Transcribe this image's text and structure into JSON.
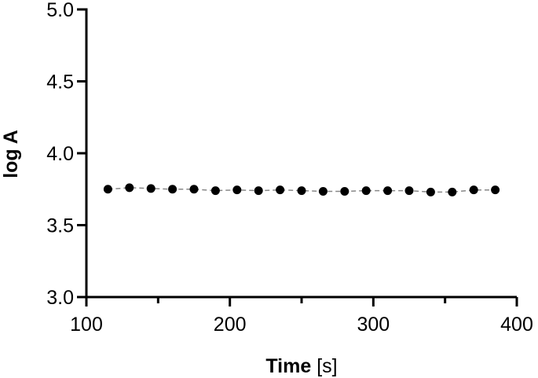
{
  "chart_data": {
    "type": "scatter",
    "xlabel": {
      "main": "Time",
      "unit": "[s]"
    },
    "ylabel": "log A",
    "xlim": [
      100,
      400
    ],
    "ylim": [
      3.0,
      5.0
    ],
    "xticks": [
      100,
      150,
      200,
      250,
      300,
      350,
      400
    ],
    "xtick_labels": [
      "100",
      "",
      "200",
      "",
      "300",
      "",
      "400"
    ],
    "yticks": [
      3.0,
      3.5,
      4.0,
      4.5,
      5.0
    ],
    "ytick_labels": [
      "3.0",
      "3.5",
      "4.0",
      "4.5",
      "5.0"
    ],
    "grid": false,
    "series": [
      {
        "point_color": "#000000",
        "line_color": "#888888",
        "x": [
          115,
          130,
          145,
          160,
          175,
          190,
          205,
          220,
          235,
          250,
          265,
          280,
          295,
          310,
          325,
          340,
          355,
          370,
          385
        ],
        "y": [
          3.75,
          3.76,
          3.755,
          3.75,
          3.75,
          3.74,
          3.745,
          3.74,
          3.745,
          3.74,
          3.735,
          3.735,
          3.74,
          3.74,
          3.74,
          3.73,
          3.73,
          3.745,
          3.745
        ]
      }
    ]
  }
}
